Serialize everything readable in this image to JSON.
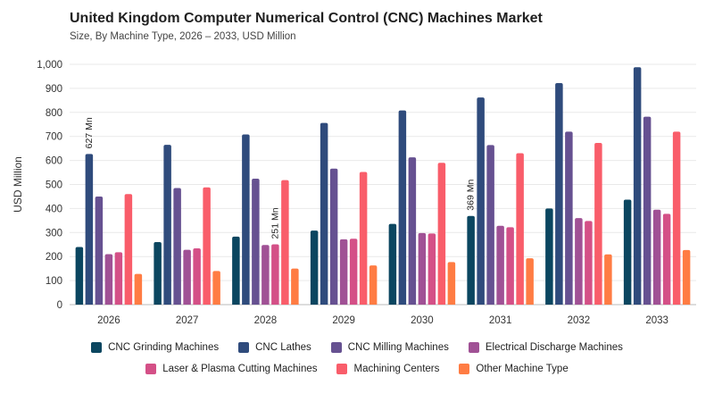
{
  "header": {
    "title": "United Kingdom Computer Numerical Control (CNC) Machines Market",
    "subtitle": "Size, By Machine Type, 2026 – 2033, USD Million"
  },
  "chart_data": {
    "type": "bar",
    "title": "United Kingdom Computer Numerical Control (CNC) Machines Market",
    "subtitle": "Size, By Machine Type, 2026 – 2033, USD Million",
    "xlabel": "",
    "ylabel": "USD Million",
    "ylim": [
      0,
      1000
    ],
    "yticks": [
      0,
      100,
      200,
      300,
      400,
      500,
      600,
      700,
      800,
      900,
      1000
    ],
    "ytick_labels": [
      "0",
      "100",
      "200",
      "300",
      "400",
      "500",
      "600",
      "700",
      "800",
      "900",
      "1,000"
    ],
    "grid": true,
    "legend_position": "bottom",
    "categories": [
      "2026",
      "2027",
      "2028",
      "2029",
      "2030",
      "2031",
      "2032",
      "2033"
    ],
    "series": [
      {
        "name": "CNC Grinding Machines",
        "color": "#0b4660",
        "values": [
          240,
          260,
          283,
          308,
          336,
          369,
          400,
          437
        ]
      },
      {
        "name": "CNC Lathes",
        "color": "#2f4b7c",
        "values": [
          627,
          665,
          708,
          756,
          808,
          862,
          922,
          988
        ]
      },
      {
        "name": "CNC Milling Machines",
        "color": "#665191",
        "values": [
          450,
          485,
          524,
          566,
          613,
          664,
          720,
          782
        ]
      },
      {
        "name": "Electrical Discharge Machines",
        "color": "#a05195",
        "values": [
          210,
          228,
          248,
          272,
          298,
          328,
          360,
          395
        ]
      },
      {
        "name": "Laser & Plasma Cutting Machines",
        "color": "#d45087",
        "values": [
          218,
          234,
          251,
          274,
          296,
          322,
          348,
          378
        ]
      },
      {
        "name": "Machining Centers",
        "color": "#f95d6a",
        "values": [
          460,
          488,
          518,
          552,
          590,
          630,
          673,
          720
        ]
      },
      {
        "name": "Other Machine Type",
        "color": "#ff7c43",
        "values": [
          128,
          140,
          150,
          163,
          177,
          193,
          209,
          227
        ]
      }
    ],
    "annotations": [
      {
        "series": 1,
        "category": 0,
        "text": "627 Mn"
      },
      {
        "series": 4,
        "category": 2,
        "text": "251 Mn"
      },
      {
        "series": 0,
        "category": 5,
        "text": "369 Mn"
      }
    ]
  }
}
